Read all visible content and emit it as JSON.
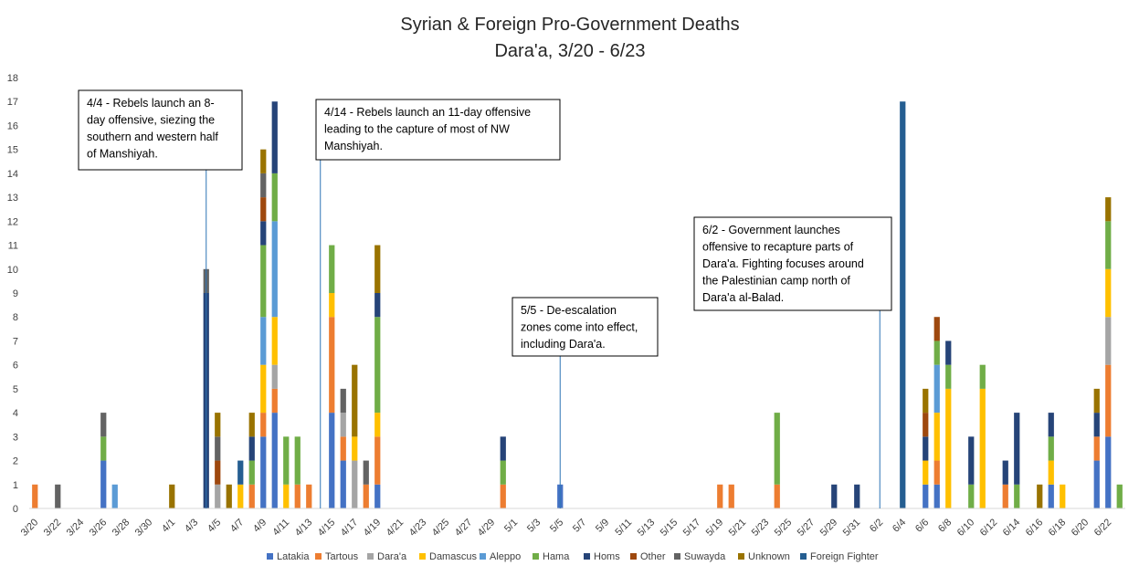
{
  "chart_data": {
    "type": "bar",
    "stacked": true,
    "title": "Syrian & Foreign Pro-Government Deaths",
    "subtitle": "Dara'a, 3/20 - 6/23",
    "xlabel": "",
    "ylabel": "",
    "ylim": [
      0,
      18
    ],
    "yticks": [
      "0",
      "1",
      "2",
      "3",
      "4",
      "5",
      "6",
      "7",
      "8",
      "9",
      "10",
      "11",
      "12",
      "13",
      "14",
      "15",
      "16",
      "17",
      "18"
    ],
    "grid": false,
    "legend_position": "bottom",
    "categories": [
      "3/20",
      "3/21",
      "3/22",
      "3/23",
      "3/24",
      "3/25",
      "3/26",
      "3/27",
      "3/28",
      "3/29",
      "3/30",
      "3/31",
      "4/1",
      "4/2",
      "4/3",
      "4/4",
      "4/5",
      "4/6",
      "4/7",
      "4/8",
      "4/9",
      "4/10",
      "4/11",
      "4/12",
      "4/13",
      "4/14",
      "4/15",
      "4/16",
      "4/17",
      "4/18",
      "4/19",
      "4/20",
      "4/21",
      "4/22",
      "4/23",
      "4/24",
      "4/25",
      "4/26",
      "4/27",
      "4/28",
      "4/29",
      "4/30",
      "5/1",
      "5/2",
      "5/3",
      "5/4",
      "5/5",
      "5/6",
      "5/7",
      "5/8",
      "5/9",
      "5/10",
      "5/11",
      "5/12",
      "5/13",
      "5/14",
      "5/15",
      "5/16",
      "5/17",
      "5/18",
      "5/19",
      "5/20",
      "5/21",
      "5/22",
      "5/23",
      "5/24",
      "5/25",
      "5/26",
      "5/27",
      "5/28",
      "5/29",
      "5/30",
      "5/31",
      "6/1",
      "6/2",
      "6/3",
      "6/4",
      "6/5",
      "6/6",
      "6/7",
      "6/8",
      "6/9",
      "6/10",
      "6/11",
      "6/12",
      "6/13",
      "6/14",
      "6/15",
      "6/16",
      "6/17",
      "6/18",
      "6/19",
      "6/20",
      "6/21",
      "6/22",
      "6/23"
    ],
    "tick_labels": [
      "3/20",
      "3/22",
      "3/24",
      "3/26",
      "3/28",
      "3/30",
      "4/1",
      "4/3",
      "4/5",
      "4/7",
      "4/9",
      "4/11",
      "4/13",
      "4/15",
      "4/17",
      "4/19",
      "4/21",
      "4/23",
      "4/25",
      "4/27",
      "4/29",
      "5/1",
      "5/3",
      "5/5",
      "5/7",
      "5/9",
      "5/11",
      "5/13",
      "5/15",
      "5/17",
      "5/19",
      "5/21",
      "5/23",
      "5/25",
      "5/27",
      "5/29",
      "5/31",
      "6/2",
      "6/4",
      "6/6",
      "6/8",
      "6/10",
      "6/12",
      "6/14",
      "6/16",
      "6/18",
      "6/20",
      "6/22"
    ],
    "series": [
      {
        "name": "Latakia",
        "color": "#4472C4",
        "points": {
          "3/26": 2,
          "4/9": 3,
          "4/10": 4,
          "4/15": 4,
          "4/16": 2,
          "4/19": 1,
          "5/5": 1,
          "6/6": 1,
          "6/7": 1,
          "6/17": 1,
          "6/21": 2,
          "6/22": 3
        }
      },
      {
        "name": "Tartous",
        "color": "#ED7D31",
        "points": {
          "3/20": 1,
          "4/8": 1,
          "4/9": 1,
          "4/10": 1,
          "4/12": 1,
          "4/13": 1,
          "4/15": 4,
          "4/16": 1,
          "4/18": 1,
          "4/19": 2,
          "4/30": 1,
          "5/19": 1,
          "5/20": 1,
          "5/24": 1,
          "6/7": 1,
          "6/13": 1,
          "6/21": 1,
          "6/22": 3
        }
      },
      {
        "name": "Dara'a",
        "color": "#A5A5A5",
        "points": {
          "4/5": 1,
          "4/10": 1,
          "4/16": 1,
          "4/17": 2,
          "6/22": 2
        }
      },
      {
        "name": "Damascus",
        "color": "#FFC000",
        "points": {
          "4/7": 1,
          "4/9": 2,
          "4/10": 2,
          "4/11": 1,
          "4/15": 1,
          "4/17": 1,
          "4/19": 1,
          "6/6": 1,
          "6/7": 2,
          "6/8": 5,
          "6/11": 5,
          "6/17": 1,
          "6/18": 1,
          "6/22": 2
        }
      },
      {
        "name": "Aleppo",
        "color": "#5B9BD5",
        "points": {
          "3/27": 1,
          "4/9": 2,
          "4/10": 4,
          "6/7": 2
        }
      },
      {
        "name": "Hama",
        "color": "#70AD47",
        "points": {
          "3/26": 1,
          "4/8": 1,
          "4/9": 3,
          "4/10": 2,
          "4/11": 2,
          "4/12": 2,
          "4/15": 2,
          "4/19": 4,
          "4/30": 1,
          "5/24": 3,
          "6/7": 1,
          "6/8": 1,
          "6/10": 1,
          "6/11": 1,
          "6/14": 1,
          "6/17": 1,
          "6/22": 2,
          "6/23": 1
        }
      },
      {
        "name": "Homs",
        "color": "#264478",
        "points": {
          "4/4": 9,
          "4/8": 1,
          "4/9": 1,
          "4/10": 3,
          "4/19": 1,
          "4/30": 1,
          "5/29": 1,
          "5/31": 1,
          "6/6": 1,
          "6/8": 1,
          "6/10": 2,
          "6/13": 1,
          "6/14": 3,
          "6/17": 1,
          "6/21": 1
        }
      },
      {
        "name": "Other",
        "color": "#9E480E",
        "points": {
          "4/5": 1,
          "4/9": 1,
          "6/6": 1,
          "6/7": 1
        }
      },
      {
        "name": "Suwayda",
        "color": "#636363",
        "points": {
          "3/22": 1,
          "3/26": 1,
          "4/4": 1,
          "4/5": 1,
          "4/9": 1,
          "4/16": 1,
          "4/18": 1
        }
      },
      {
        "name": "Unknown",
        "color": "#997300",
        "points": {
          "4/1": 1,
          "4/5": 1,
          "4/6": 1,
          "4/8": 1,
          "4/9": 1,
          "4/17": 3,
          "4/19": 2,
          "6/6": 1,
          "6/16": 1,
          "6/21": 1,
          "6/22": 1
        }
      },
      {
        "name": "Foreign Fighter",
        "color": "#255E91",
        "points": {
          "4/7": 1,
          "4/15": 0,
          "6/4": 17
        }
      }
    ],
    "annotations": [
      {
        "at": "4/4",
        "lines": [
          "4/4 - Rebels launch an 8-",
          "day offensive, siezing the",
          "southern and western half",
          "of Manshiyah."
        ]
      },
      {
        "at": "4/14",
        "lines": [
          "4/14 - Rebels launch an 11-day offensive",
          "leading to the capture of most of NW",
          "Manshiyah."
        ]
      },
      {
        "at": "5/5",
        "lines": [
          "5/5 - De-escalation",
          "zones come into effect,",
          "including Dara'a."
        ]
      },
      {
        "at": "6/2",
        "lines": [
          "6/2 - Government launches",
          "offensive to recapture parts of",
          "Dara'a. Fighting focuses around",
          "the Palestinian camp north of",
          "Dara'a al-Balad."
        ]
      }
    ]
  }
}
